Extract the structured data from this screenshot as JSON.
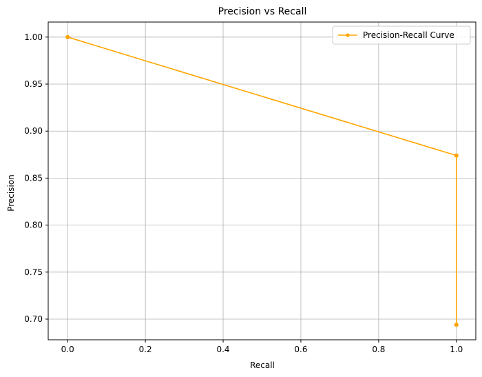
{
  "chart_data": {
    "type": "line",
    "title": "Precision vs Recall",
    "xlabel": "Recall",
    "ylabel": "Precision",
    "xlim": [
      -0.05,
      1.05
    ],
    "ylim": [
      0.678,
      1.016
    ],
    "x_ticks": [
      0.0,
      0.2,
      0.4,
      0.6,
      0.8,
      1.0
    ],
    "x_tick_labels": [
      "0.0",
      "0.2",
      "0.4",
      "0.6",
      "0.8",
      "1.0"
    ],
    "y_ticks": [
      0.7,
      0.75,
      0.8,
      0.85,
      0.9,
      0.95,
      1.0
    ],
    "y_tick_labels": [
      "0.70",
      "0.75",
      "0.80",
      "0.85",
      "0.90",
      "0.95",
      "1.00"
    ],
    "grid": true,
    "legend_position": "top-right",
    "series": [
      {
        "name": "Precision-Recall Curve",
        "color": "#FFA500",
        "marker": "circle",
        "x": [
          0.0,
          1.0,
          1.0
        ],
        "y": [
          1.0,
          0.874,
          0.694
        ]
      }
    ]
  }
}
